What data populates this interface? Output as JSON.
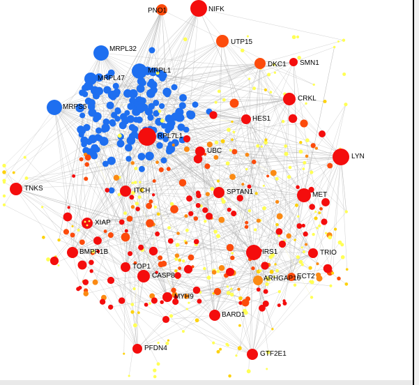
{
  "colors": {
    "background": "#ffffff",
    "edge": "#a9a9a9",
    "mitochondrial_ribosome_cluster": "#1e6ff0",
    "hub_high": "#f40d0d",
    "hub_mid": "#fc4b0c",
    "mid": "#fb8a13",
    "low": "#fdd20f",
    "lowest": "#ffff55"
  },
  "labels": [
    {
      "name": "NIFK"
    },
    {
      "name": "PNO1"
    },
    {
      "name": "UTP15"
    },
    {
      "name": "DKC1"
    },
    {
      "name": "SMN1"
    },
    {
      "name": "MRPL32"
    },
    {
      "name": "MRPL1"
    },
    {
      "name": "MRPL47"
    },
    {
      "name": "MRPS5"
    },
    {
      "name": "CRKL"
    },
    {
      "name": "HES1"
    },
    {
      "name": "RPL7L1"
    },
    {
      "name": "UBC"
    },
    {
      "name": "LYN"
    },
    {
      "name": "TNKS"
    },
    {
      "name": "ITCH"
    },
    {
      "name": "SPTAN1"
    },
    {
      "name": "MET"
    },
    {
      "name": "XIAP"
    },
    {
      "name": "BMPR1B"
    },
    {
      "name": "IRS1"
    },
    {
      "name": "TRIO"
    },
    {
      "name": "TOP1"
    },
    {
      "name": "CASP8"
    },
    {
      "name": "ARHGAP10"
    },
    {
      "name": "ECT2"
    },
    {
      "name": "MYH9"
    },
    {
      "name": "BARD1"
    },
    {
      "name": "PFDN4"
    },
    {
      "name": "GTF2E1"
    }
  ]
}
